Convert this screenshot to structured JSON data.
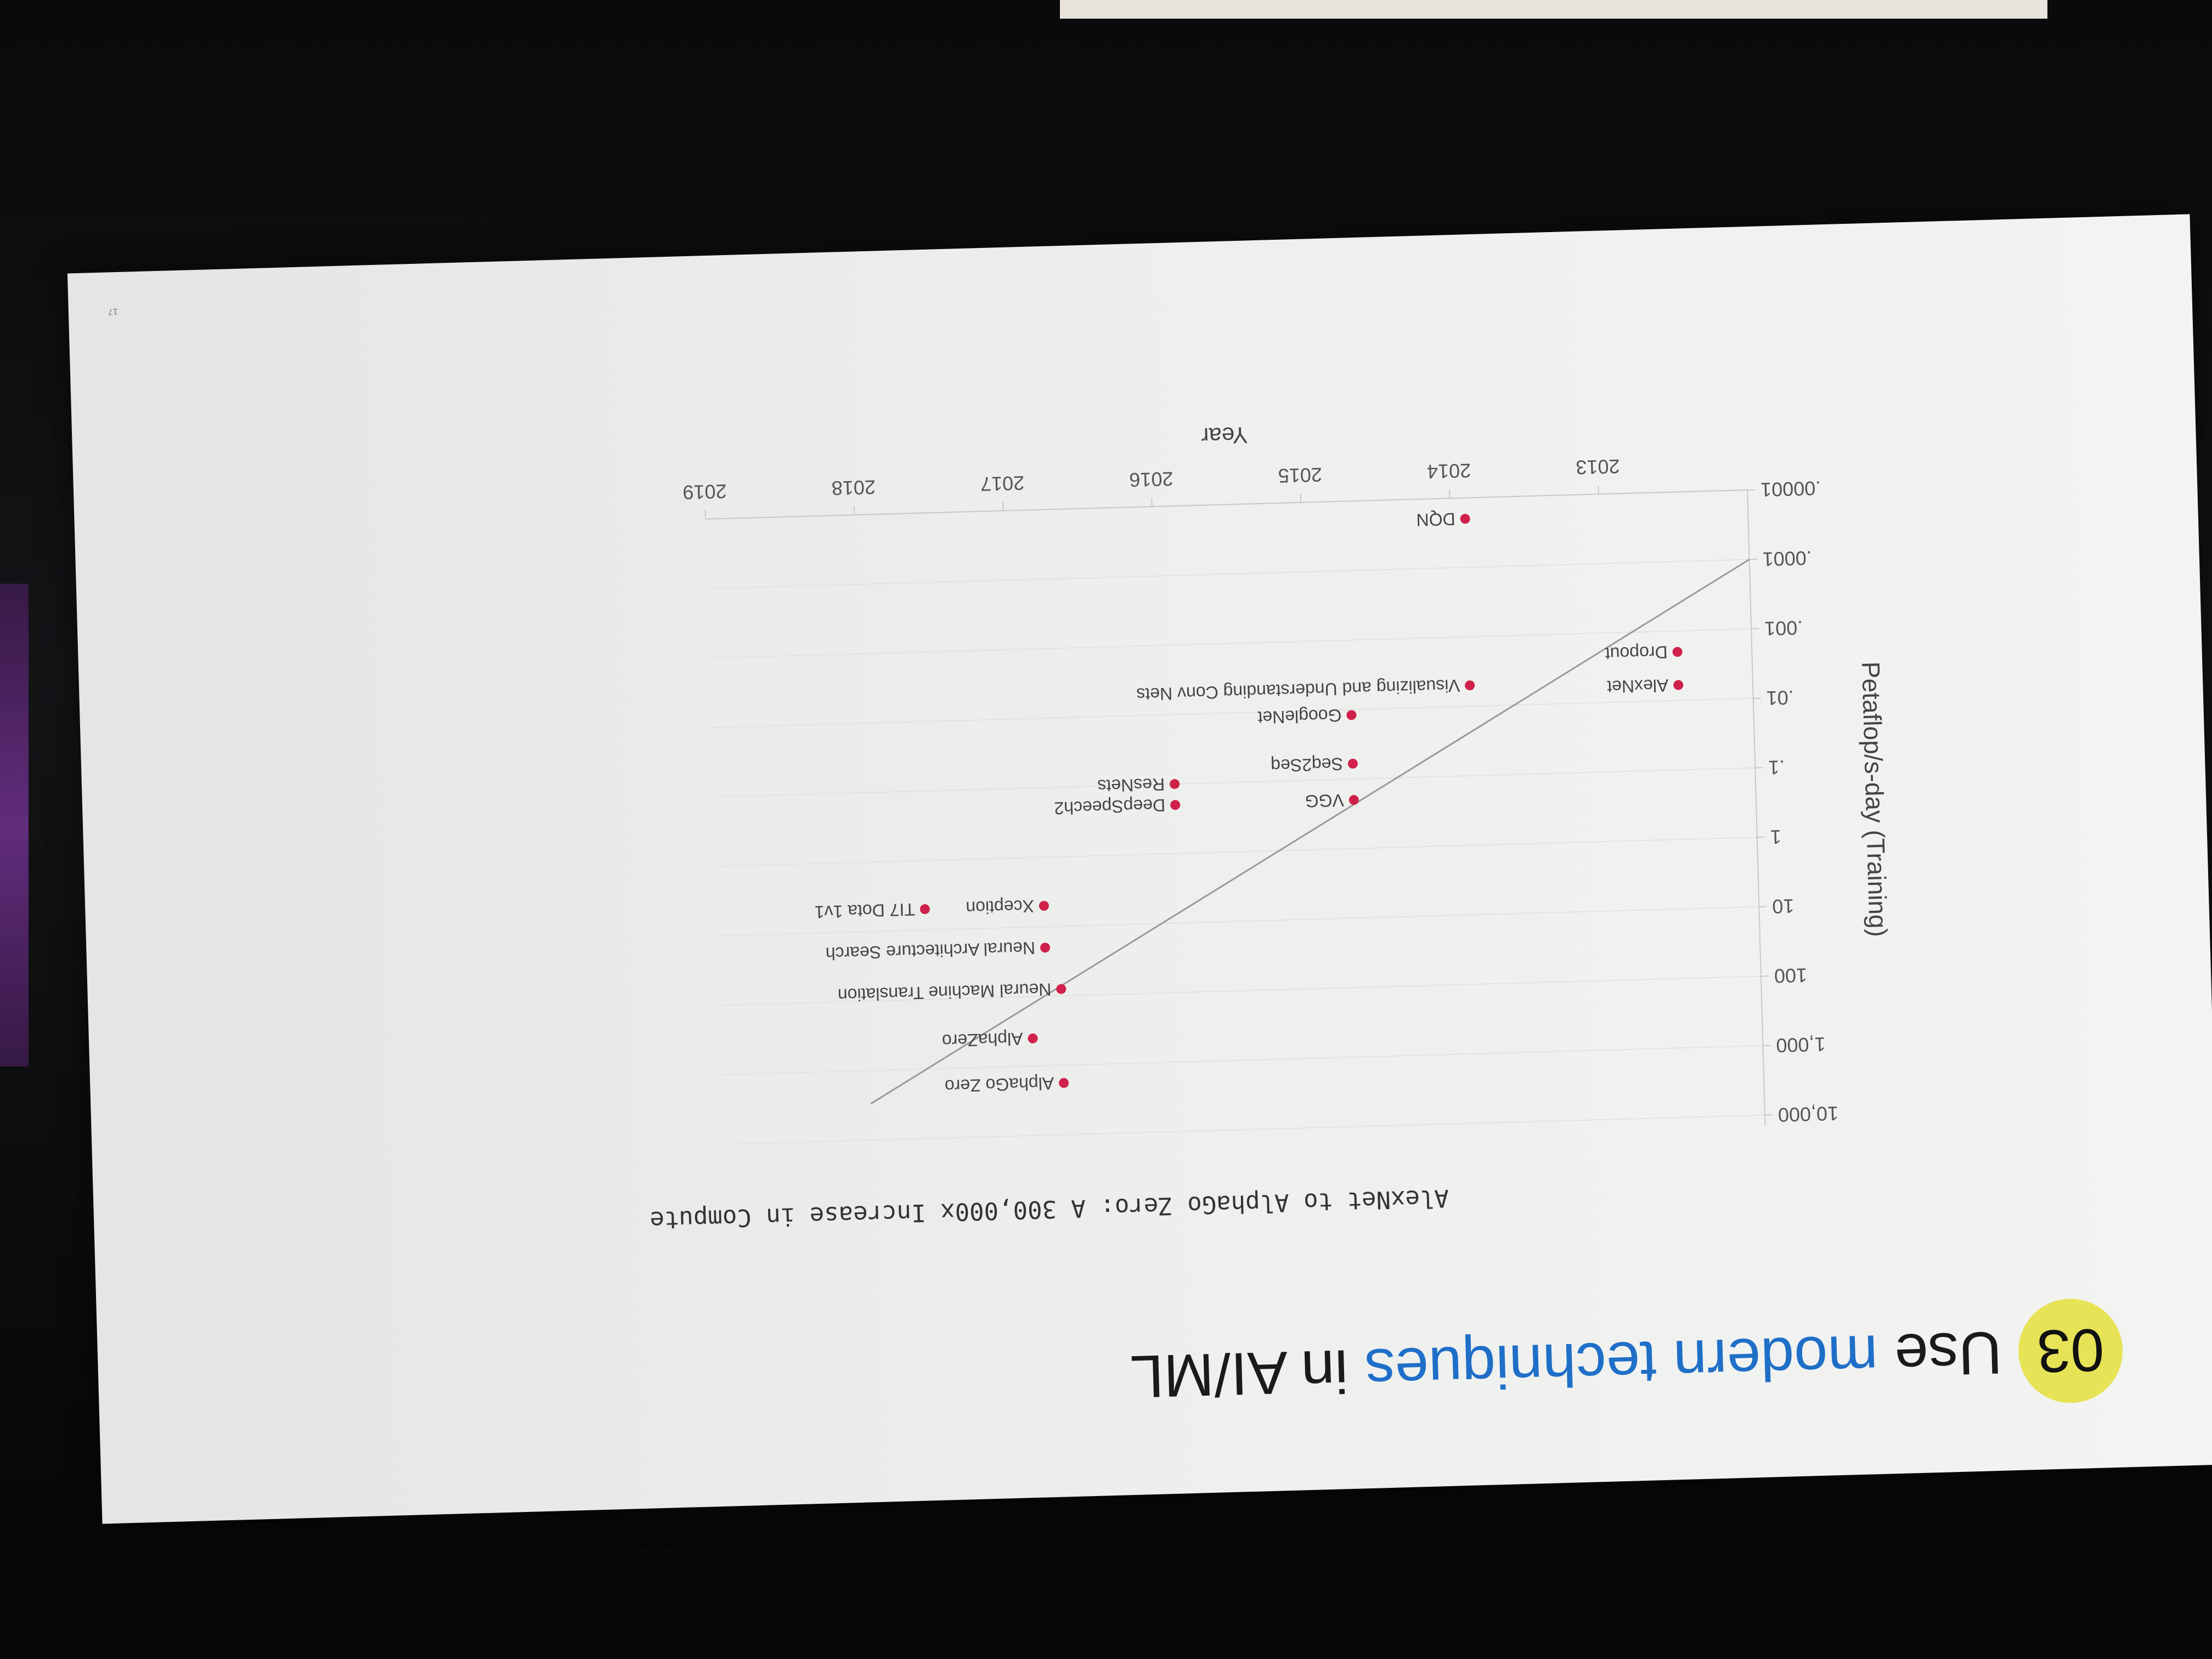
{
  "slide": {
    "section_number": "03",
    "heading_plain_1": "Use",
    "heading_highlight": "modern techniques",
    "heading_plain_2": "in AI/ML",
    "page_number": "17"
  },
  "colors": {
    "badge": "#e7e357",
    "highlight": "#1f6fc8",
    "point": "#d0214b",
    "trend": "#9a9a9a"
  },
  "chart_data": {
    "type": "scatter",
    "title": "AlexNet to AlphaGo Zero: A 300,000x Increase in Compute",
    "xlabel": "Year",
    "ylabel": "Petaflop/s-day (Training)",
    "y_scale": "log",
    "ylim": [
      1e-05,
      10000
    ],
    "xlim": [
      2012.0,
      2019.0
    ],
    "x_ticks": [
      "2013",
      "2014",
      "2015",
      "2016",
      "2017",
      "2018",
      "2019"
    ],
    "y_ticks": [
      ".00001",
      ".0001",
      ".001",
      ".01",
      ".1",
      "1",
      "10",
      "100",
      "1,000",
      "10,000"
    ],
    "trendline": {
      "from": [
        2012.0,
        0.0001
      ],
      "to": [
        2018.0,
        3000
      ]
    },
    "points": [
      {
        "label": "AlexNet",
        "x": 2012.5,
        "y": 0.006
      },
      {
        "label": "Dropout",
        "x": 2012.5,
        "y": 0.002
      },
      {
        "label": "DQN",
        "x": 2013.9,
        "y": 2e-05
      },
      {
        "label": "Visualizing and Understanding Conv Nets",
        "x": 2013.9,
        "y": 0.005
      },
      {
        "label": "GoogleNet",
        "x": 2014.7,
        "y": 0.012
      },
      {
        "label": "Seq2Seq",
        "x": 2014.7,
        "y": 0.06
      },
      {
        "label": "VGG",
        "x": 2014.7,
        "y": 0.2
      },
      {
        "label": "DeepSpeech2",
        "x": 2015.9,
        "y": 0.2
      },
      {
        "label": "ResNets",
        "x": 2015.9,
        "y": 0.1
      },
      {
        "label": "Xception",
        "x": 2016.8,
        "y": 5
      },
      {
        "label": "TI7 Dota 1v1",
        "x": 2017.6,
        "y": 5
      },
      {
        "label": "Neural Architecture Search",
        "x": 2016.8,
        "y": 20
      },
      {
        "label": "Neural Machine Translation",
        "x": 2016.7,
        "y": 80
      },
      {
        "label": "AlphaZero",
        "x": 2016.9,
        "y": 400
      },
      {
        "label": "AlphaGo Zero",
        "x": 2016.7,
        "y": 1800
      }
    ]
  }
}
